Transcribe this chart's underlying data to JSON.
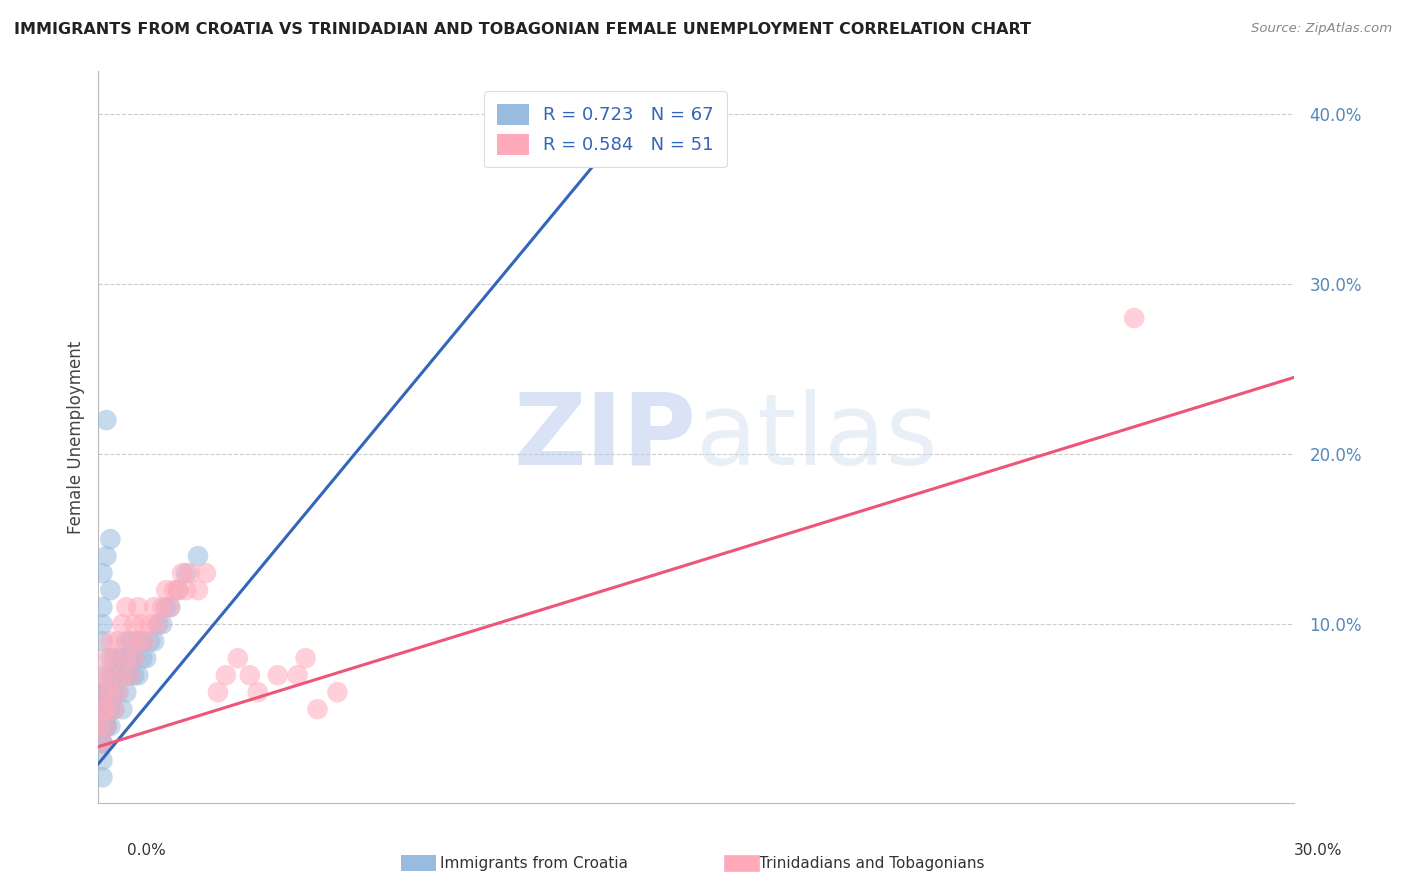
{
  "title": "IMMIGRANTS FROM CROATIA VS TRINIDADIAN AND TOBAGONIAN FEMALE UNEMPLOYMENT CORRELATION CHART",
  "source": "Source: ZipAtlas.com",
  "ylabel": "Female Unemployment",
  "xlim": [
    0.0,
    0.3
  ],
  "ylim": [
    -0.005,
    0.425
  ],
  "blue_R": 0.723,
  "blue_N": 67,
  "pink_R": 0.584,
  "pink_N": 51,
  "blue_color": "#99BBDD",
  "pink_color": "#FFAABB",
  "blue_line_color": "#3366BB",
  "pink_line_color": "#EE5577",
  "watermark_zip": "ZIP",
  "watermark_atlas": "atlas",
  "legend_label_blue": "Immigrants from Croatia",
  "legend_label_pink": "Trinidadians and Tobagonians",
  "y_tick_positions": [
    0.1,
    0.2,
    0.3,
    0.4
  ],
  "y_tick_labels": [
    "10.0%",
    "20.0%",
    "30.0%",
    "40.0%"
  ],
  "blue_regline_x": [
    0.0,
    0.135
  ],
  "blue_regline_y": [
    0.018,
    0.4
  ],
  "pink_regline_x": [
    0.0,
    0.3
  ],
  "pink_regline_y": [
    0.028,
    0.245
  ],
  "blue_scatter_x": [
    0.0005,
    0.001,
    0.001,
    0.001,
    0.001,
    0.001,
    0.002,
    0.002,
    0.002,
    0.002,
    0.002,
    0.002,
    0.002,
    0.003,
    0.003,
    0.003,
    0.003,
    0.003,
    0.004,
    0.004,
    0.004,
    0.004,
    0.005,
    0.005,
    0.005,
    0.006,
    0.006,
    0.006,
    0.007,
    0.007,
    0.007,
    0.008,
    0.008,
    0.008,
    0.009,
    0.009,
    0.01,
    0.01,
    0.011,
    0.011,
    0.012,
    0.013,
    0.014,
    0.015,
    0.016,
    0.017,
    0.018,
    0.02,
    0.022,
    0.025,
    0.001,
    0.001,
    0.002,
    0.003,
    0.001,
    0.001,
    0.002,
    0.003,
    0.001,
    0.002,
    0.001,
    0.001,
    0.002,
    0.001,
    0.001,
    0.001,
    0.135
  ],
  "blue_scatter_y": [
    0.04,
    0.05,
    0.06,
    0.03,
    0.04,
    0.05,
    0.04,
    0.05,
    0.06,
    0.07,
    0.04,
    0.05,
    0.06,
    0.05,
    0.06,
    0.07,
    0.08,
    0.04,
    0.05,
    0.06,
    0.07,
    0.08,
    0.06,
    0.07,
    0.08,
    0.05,
    0.07,
    0.08,
    0.06,
    0.07,
    0.09,
    0.07,
    0.08,
    0.09,
    0.07,
    0.08,
    0.07,
    0.09,
    0.08,
    0.09,
    0.08,
    0.09,
    0.09,
    0.1,
    0.1,
    0.11,
    0.11,
    0.12,
    0.13,
    0.14,
    0.11,
    0.13,
    0.14,
    0.12,
    0.09,
    0.1,
    0.22,
    0.15,
    0.03,
    0.04,
    0.06,
    0.04,
    0.05,
    0.03,
    0.02,
    0.01,
    0.39
  ],
  "pink_scatter_x": [
    0.0005,
    0.001,
    0.001,
    0.001,
    0.001,
    0.002,
    0.002,
    0.002,
    0.003,
    0.003,
    0.003,
    0.004,
    0.004,
    0.005,
    0.005,
    0.006,
    0.006,
    0.007,
    0.007,
    0.008,
    0.008,
    0.009,
    0.009,
    0.01,
    0.01,
    0.011,
    0.012,
    0.013,
    0.014,
    0.015,
    0.016,
    0.017,
    0.018,
    0.019,
    0.02,
    0.021,
    0.022,
    0.023,
    0.025,
    0.027,
    0.03,
    0.032,
    0.035,
    0.038,
    0.04,
    0.045,
    0.05,
    0.052,
    0.055,
    0.06,
    0.26
  ],
  "pink_scatter_y": [
    0.04,
    0.03,
    0.05,
    0.06,
    0.07,
    0.04,
    0.05,
    0.08,
    0.06,
    0.07,
    0.09,
    0.05,
    0.08,
    0.06,
    0.09,
    0.07,
    0.1,
    0.08,
    0.11,
    0.07,
    0.09,
    0.08,
    0.1,
    0.09,
    0.11,
    0.1,
    0.09,
    0.1,
    0.11,
    0.1,
    0.11,
    0.12,
    0.11,
    0.12,
    0.12,
    0.13,
    0.12,
    0.13,
    0.12,
    0.13,
    0.06,
    0.07,
    0.08,
    0.07,
    0.06,
    0.07,
    0.07,
    0.08,
    0.05,
    0.06,
    0.28
  ]
}
